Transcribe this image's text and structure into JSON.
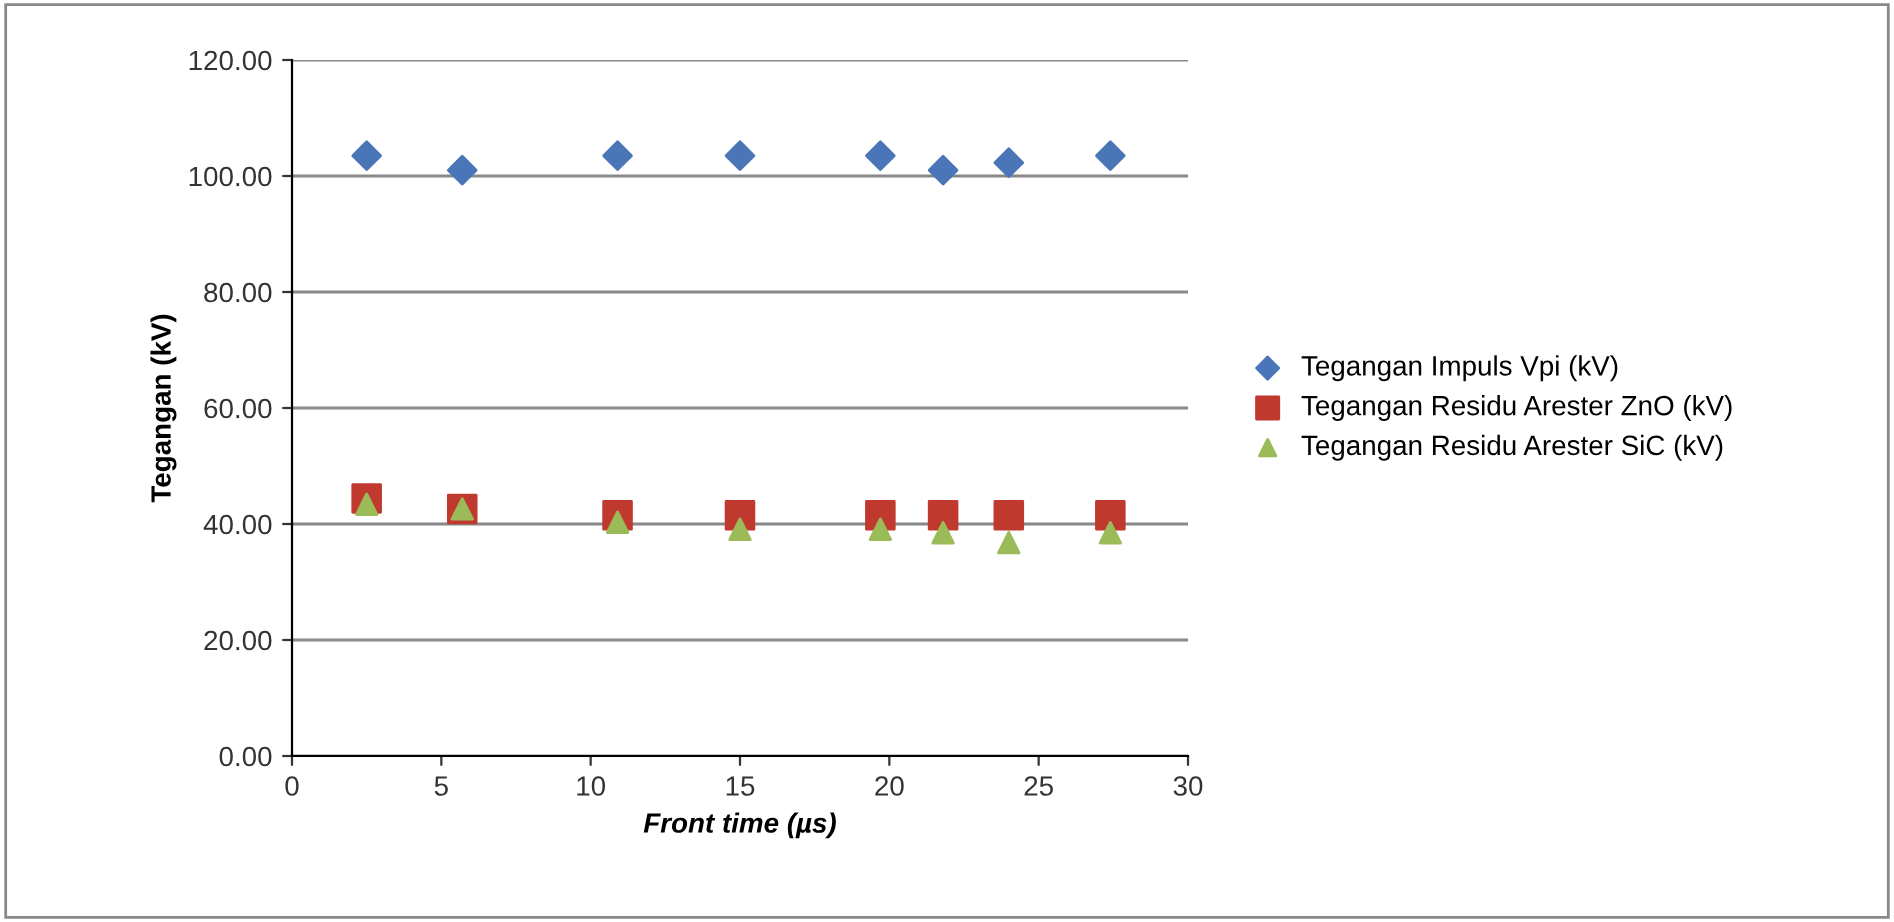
{
  "chart_data": {
    "type": "scatter",
    "xlabel": "Front time (µs)",
    "ylabel": "Tegangan (kV)",
    "xlim": [
      0,
      30
    ],
    "xticks": [
      0,
      5,
      10,
      15,
      20,
      25,
      30
    ],
    "ylim": [
      0,
      120
    ],
    "yticks": [
      {
        "value": 0,
        "label": "0.00"
      },
      {
        "value": 20,
        "label": "20.00"
      },
      {
        "value": 40,
        "label": "40.00"
      },
      {
        "value": 60,
        "label": "60.00"
      },
      {
        "value": 80,
        "label": "80.00"
      },
      {
        "value": 100,
        "label": "100.00"
      },
      {
        "value": 120,
        "label": "120.00"
      }
    ],
    "grid": "y",
    "legend": "right",
    "x": [
      2.5,
      5.7,
      10.9,
      15.0,
      19.7,
      21.8,
      24.0,
      27.4
    ],
    "series": [
      {
        "name": "Tegangan Impuls Vpi (kV)",
        "color": "#4a76b8",
        "marker": "diamond",
        "values": [
          103.5,
          101,
          103.5,
          103.5,
          103.5,
          101,
          102.3,
          103.5
        ]
      },
      {
        "name": "Tegangan Residu Arester ZnO (kV)",
        "color": "#c0392f",
        "marker": "square",
        "values": [
          44.4,
          42.6,
          41.5,
          41.5,
          41.5,
          41.5,
          41.5,
          41.5
        ]
      },
      {
        "name": "Tegangan Residu Arester SiC (kV)",
        "color": "#9bbb59",
        "marker": "triangle",
        "values": [
          43.4,
          42.6,
          40.3,
          39.1,
          39.1,
          38.5,
          36.8,
          38.5
        ]
      }
    ]
  }
}
